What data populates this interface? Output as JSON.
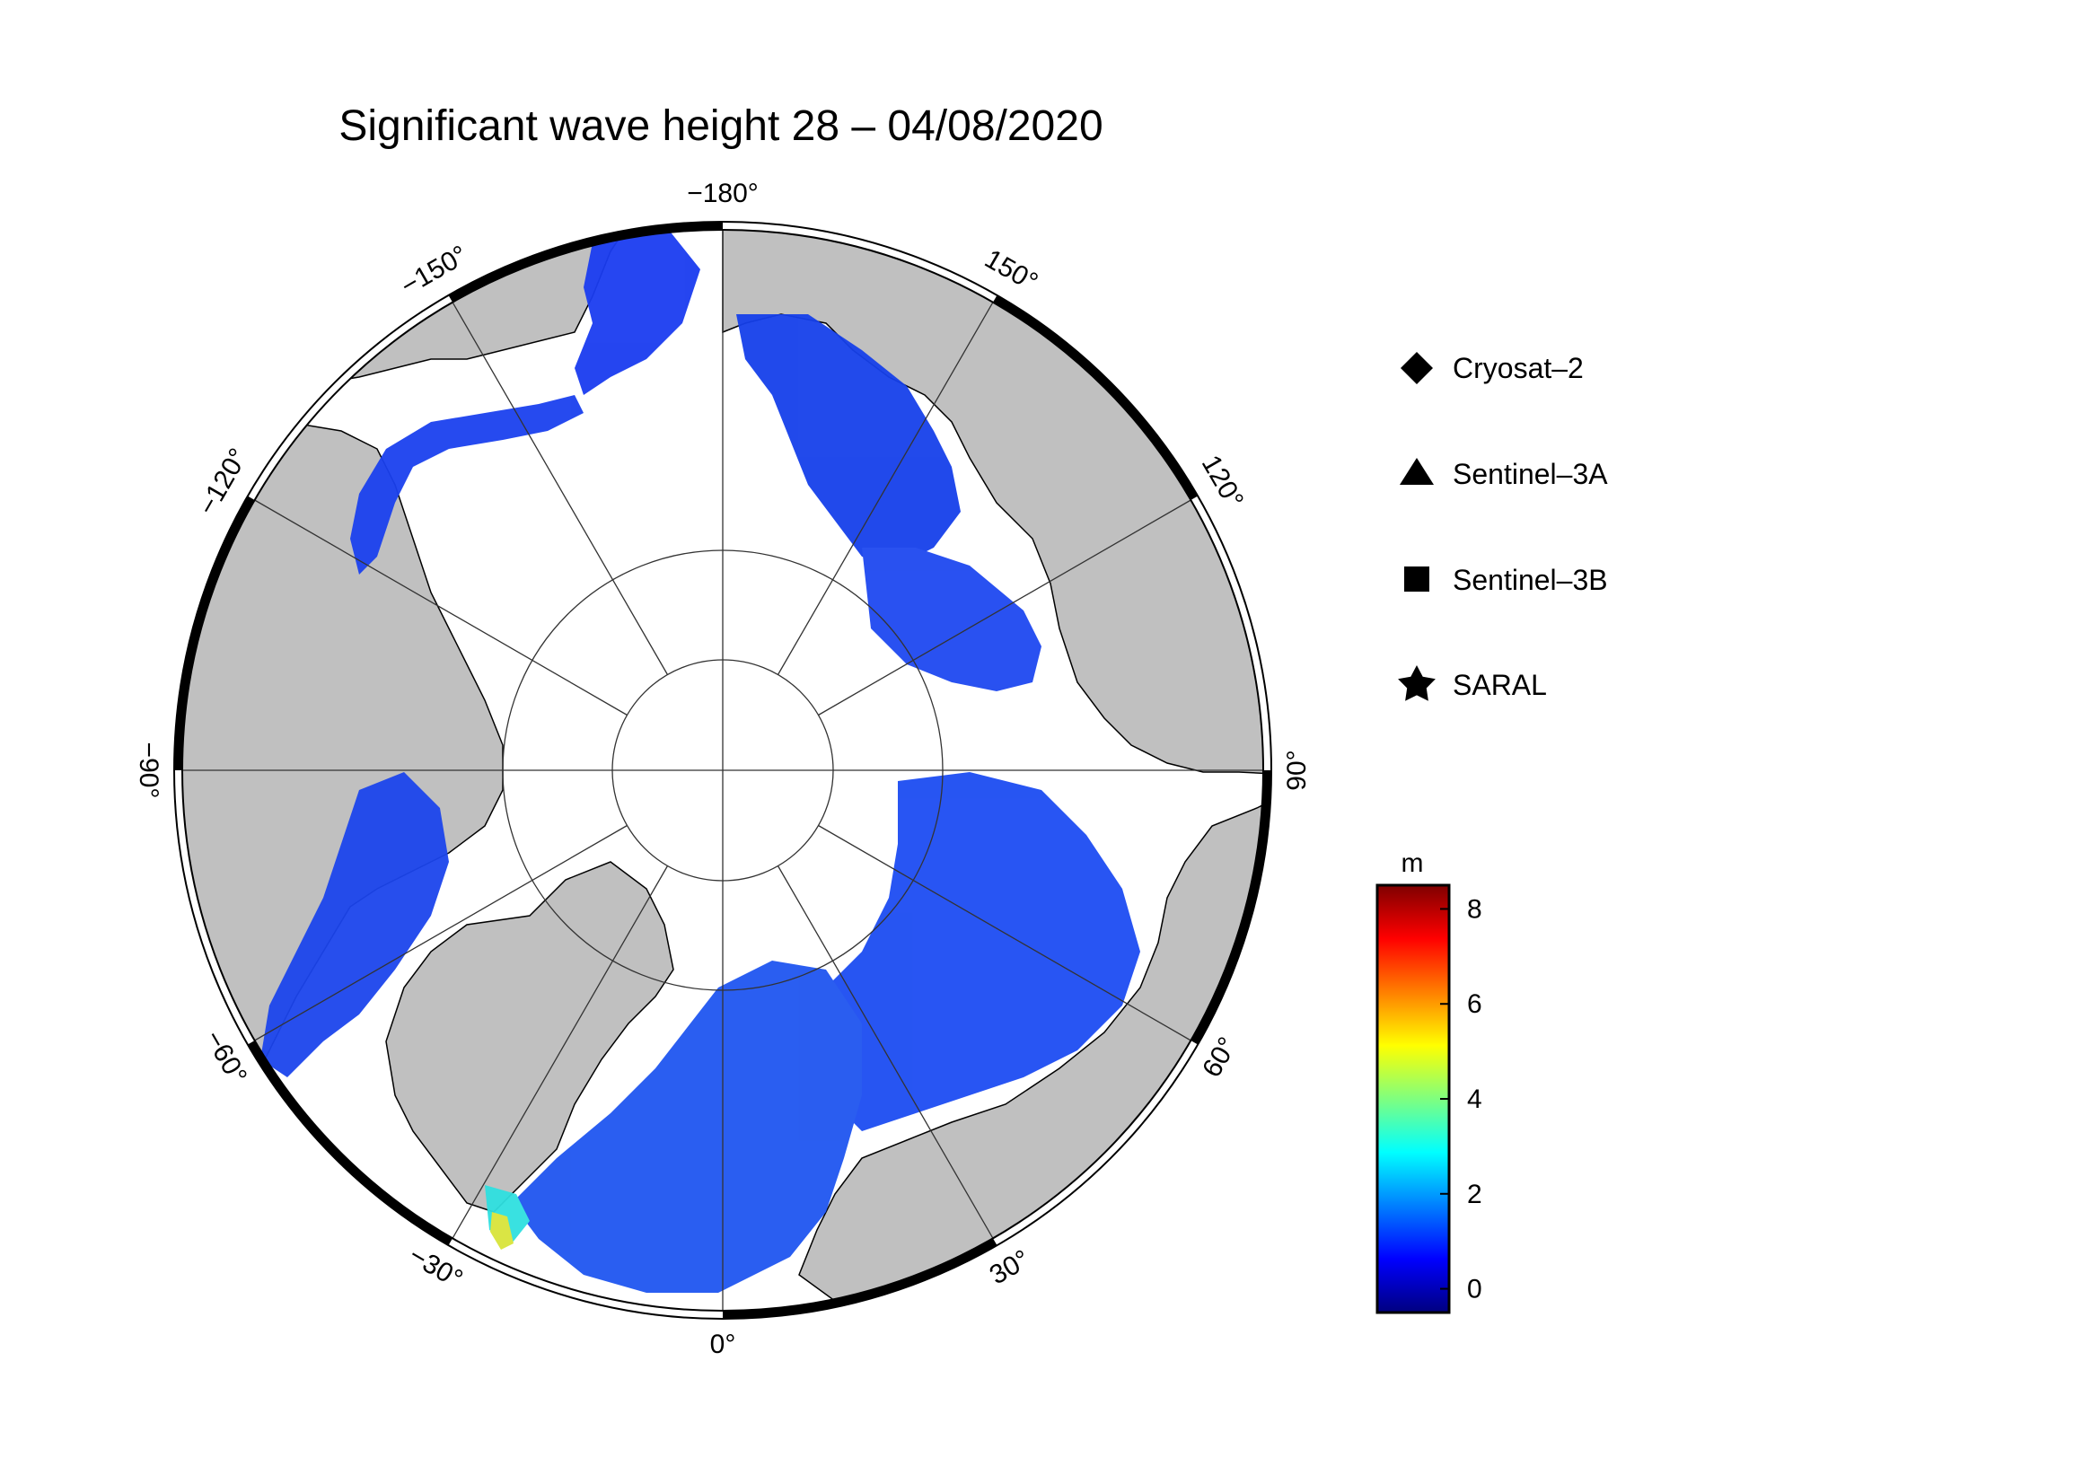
{
  "title": "Significant wave height 28 – 04/08/2020",
  "map": {
    "projection": "north-polar-stereographic",
    "land_color": "#c0c0c0",
    "ice_color": "#ffffff",
    "meridian_labels": [
      {
        "lon": 180,
        "label": "−180°"
      },
      {
        "lon": 150,
        "label": "150°"
      },
      {
        "lon": 120,
        "label": "120°"
      },
      {
        "lon": 90,
        "label": "90°"
      },
      {
        "lon": 60,
        "label": "60°"
      },
      {
        "lon": 30,
        "label": "30°"
      },
      {
        "lon": 0,
        "label": "0°"
      },
      {
        "lon": -30,
        "label": "−30°"
      },
      {
        "lon": -60,
        "label": "−60°"
      },
      {
        "lon": -90,
        "label": "−90°"
      },
      {
        "lon": -120,
        "label": "−120°"
      },
      {
        "lon": -150,
        "label": "−150°"
      }
    ],
    "latitude_circles": [
      70,
      80
    ]
  },
  "legend": [
    {
      "symbol": "diamond-icon",
      "label": "Cryosat–2"
    },
    {
      "symbol": "triangle-icon",
      "label": "Sentinel–3A"
    },
    {
      "symbol": "square-icon",
      "label": "Sentinel–3B"
    },
    {
      "symbol": "star-icon",
      "label": "SARAL"
    }
  ],
  "colorbar": {
    "unit": "m",
    "range": [
      -0.5,
      8.5
    ],
    "ticks": [
      {
        "value": 0,
        "label": "0"
      },
      {
        "value": 2,
        "label": "2"
      },
      {
        "value": 4,
        "label": "4"
      },
      {
        "value": 6,
        "label": "6"
      },
      {
        "value": 8,
        "label": "8"
      }
    ],
    "colors": [
      "#00007f",
      "#0000ff",
      "#007fff",
      "#00ffff",
      "#7fff7f",
      "#ffff00",
      "#ff7f00",
      "#ff0000",
      "#7f0000"
    ]
  }
}
